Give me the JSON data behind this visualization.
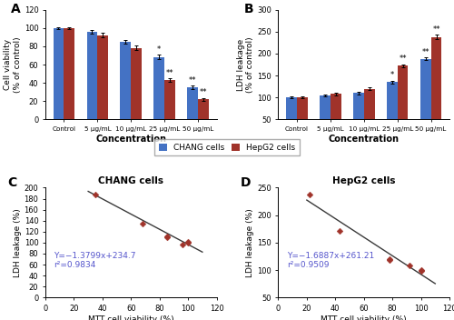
{
  "panel_A": {
    "title": "A",
    "categories": [
      "Control",
      "5 μg/mL",
      "10 μg/mL",
      "25 μg/mL",
      "50 μg/mL"
    ],
    "chang_values": [
      100,
      96,
      85,
      68,
      35
    ],
    "hepg2_values": [
      100,
      92,
      78,
      43,
      22
    ],
    "chang_err": [
      1.2,
      1.8,
      2.0,
      2.5,
      2.0
    ],
    "hepg2_err": [
      1.2,
      2.5,
      2.5,
      2.0,
      1.5
    ],
    "ylabel": "Cell viability\n(% of control)",
    "xlabel": "Concentration",
    "ylim": [
      0,
      120
    ],
    "yticks": [
      0,
      20,
      40,
      60,
      80,
      100,
      120
    ],
    "chang_sig": [
      "",
      "",
      "",
      "*",
      "**"
    ],
    "hepg2_sig": [
      "",
      "",
      "",
      "**",
      "**"
    ]
  },
  "panel_B": {
    "title": "B",
    "categories": [
      "Control",
      "5 μg/mL",
      "10 μg/mL",
      "25 μg/mL",
      "50 μg/mL"
    ],
    "chang_values": [
      100,
      105,
      110,
      135,
      188
    ],
    "hepg2_values": [
      100,
      108,
      120,
      172,
      238
    ],
    "chang_err": [
      2.0,
      2.5,
      2.5,
      3.0,
      3.5
    ],
    "hepg2_err": [
      2.0,
      3.0,
      3.5,
      4.0,
      5.0
    ],
    "ylabel": "LDH leakage\n(% of control)",
    "xlabel": "Concentration",
    "ylim": [
      50,
      300
    ],
    "yticks": [
      50,
      100,
      150,
      200,
      250,
      300
    ],
    "chang_sig": [
      "",
      "",
      "",
      "*",
      "**"
    ],
    "hepg2_sig": [
      "",
      "",
      "",
      "**",
      "**"
    ]
  },
  "panel_C": {
    "title": "C",
    "panel_title": "CHANG cells",
    "x": [
      100,
      96,
      85,
      68,
      35
    ],
    "y": [
      100,
      105,
      110,
      135,
      188
    ],
    "x_rep": [
      100,
      100,
      96,
      85,
      85,
      68,
      35
    ],
    "y_rep": [
      100,
      102,
      96,
      110,
      112,
      135,
      188
    ],
    "equation": "Y=−1.3799x+234.7",
    "r2": "r²=0.9834",
    "xlabel": "MTT cell viability (%)",
    "ylabel": "LDH leakage (%)",
    "xlim": [
      0,
      120
    ],
    "ylim": [
      0,
      200
    ],
    "xticks": [
      0,
      20,
      40,
      60,
      80,
      100,
      120
    ],
    "yticks": [
      0,
      20,
      40,
      60,
      80,
      100,
      120,
      140,
      160,
      180,
      200
    ],
    "line_x": [
      30,
      110
    ],
    "slope": -1.3799,
    "intercept": 234.7
  },
  "panel_D": {
    "title": "D",
    "panel_title": "HepG2 cells",
    "x": [
      100,
      92,
      78,
      43,
      22
    ],
    "y": [
      100,
      108,
      120,
      172,
      238
    ],
    "x_rep": [
      100,
      100,
      92,
      78,
      78,
      43,
      22
    ],
    "y_rep": [
      98,
      102,
      108,
      118,
      122,
      172,
      238
    ],
    "equation": "Y=−1.6887x+261.21",
    "r2": "r²=0.9509",
    "xlabel": "MTT cell viability (%)",
    "ylabel": "LDH leakage (%)",
    "xlim": [
      0,
      120
    ],
    "ylim": [
      50,
      250
    ],
    "xticks": [
      0,
      20,
      40,
      60,
      80,
      100,
      120
    ],
    "yticks": [
      50,
      100,
      150,
      200,
      250
    ],
    "line_x": [
      20,
      110
    ],
    "slope": -1.6887,
    "intercept": 261.21
  },
  "colors": {
    "chang": "#4472C4",
    "hepg2": "#A0332A",
    "line": "#3a3a3a",
    "scatter": "#A0332A",
    "eq_color": "#5555CC"
  },
  "legend_labels": [
    "CHANG cells",
    "HepG2 cells"
  ]
}
